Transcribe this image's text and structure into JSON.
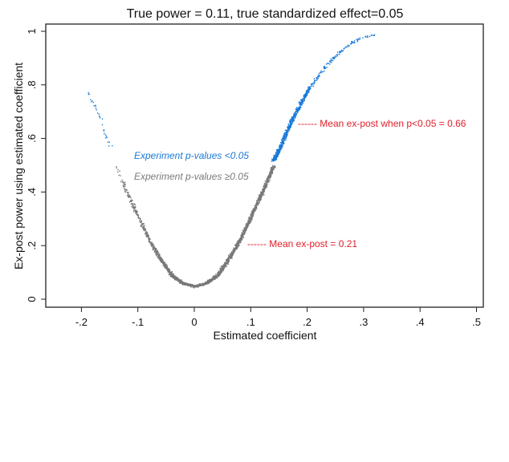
{
  "chart_data": {
    "type": "scatter",
    "title": "True power = 0.11, true standardized effect=0.05",
    "xlabel": "Estimated coefficient",
    "ylabel": "Ex-post power using estimated coefficient",
    "xlim": [
      -0.26,
      0.52
    ],
    "ylim": [
      -0.03,
      1.03
    ],
    "xticks": [
      -0.2,
      -0.1,
      0,
      0.1,
      0.2,
      0.3,
      0.4,
      0.5
    ],
    "xtick_labels": [
      "-.2",
      "-.1",
      "0",
      ".1",
      ".2",
      ".3",
      ".4",
      ".5"
    ],
    "yticks": [
      0,
      0.2,
      0.4,
      0.6,
      0.8,
      1
    ],
    "ytick_labels": [
      "0",
      ".2",
      ".4",
      ".6",
      ".8",
      "1"
    ],
    "grid": false,
    "series": [
      {
        "name": "Experiment p-values <0.05",
        "color": "#1a7ad8",
        "description": "significant estimates (|coef| > ~0.14)",
        "x": [
          -0.19,
          -0.17,
          -0.16,
          -0.15,
          0.14,
          0.15,
          0.16,
          0.17,
          0.18,
          0.19,
          0.2,
          0.22,
          0.24,
          0.26,
          0.28,
          0.3,
          0.32
        ],
        "y": [
          0.78,
          0.69,
          0.63,
          0.57,
          0.52,
          0.56,
          0.61,
          0.66,
          0.7,
          0.74,
          0.78,
          0.84,
          0.89,
          0.93,
          0.96,
          0.98,
          0.99
        ]
      },
      {
        "name": "Experiment p-values ≥0.05",
        "color": "#787878",
        "description": "non-significant estimates (|coef| < ~0.14)",
        "x": [
          -0.14,
          -0.12,
          -0.1,
          -0.08,
          -0.06,
          -0.04,
          -0.02,
          0,
          0.02,
          0.04,
          0.06,
          0.08,
          0.1,
          0.12,
          0.14
        ],
        "y": [
          0.5,
          0.4,
          0.31,
          0.22,
          0.15,
          0.09,
          0.06,
          0.05,
          0.06,
          0.09,
          0.15,
          0.22,
          0.31,
          0.4,
          0.5
        ]
      }
    ],
    "legend": [
      {
        "label": "Experiment p-values <0.05",
        "color": "#1a7ad8"
      },
      {
        "label": "Experiment p-values ≥0.05",
        "color": "#787878"
      }
    ],
    "legend_position": "inside, upper-left of curve",
    "annotations": [
      {
        "text": "------ Mean ex-post when p<0.05 = 0.66",
        "x": 0.185,
        "y": 0.66,
        "color": "#e0202a"
      },
      {
        "text": "------ Mean ex-post  = 0.21",
        "x": 0.095,
        "y": 0.21,
        "color": "#e0202a"
      }
    ]
  },
  "labels": {
    "title": "True power = 0.11, true standardized effect=0.05",
    "xlabel": "Estimated coefficient",
    "ylabel": "Ex-post power using estimated coefficient",
    "legend_sig": "Experiment p-values <0.05",
    "legend_nonsig": "Experiment p-values ≥0.05",
    "anno_sig": "------ Mean ex-post when p<0.05 = 0.66",
    "anno_all": "------ Mean ex-post  = 0.21"
  },
  "colors": {
    "significant": "#1a7ad8",
    "nonsignificant": "#787878",
    "annotation": "#e0202a",
    "frame": "#222222"
  }
}
